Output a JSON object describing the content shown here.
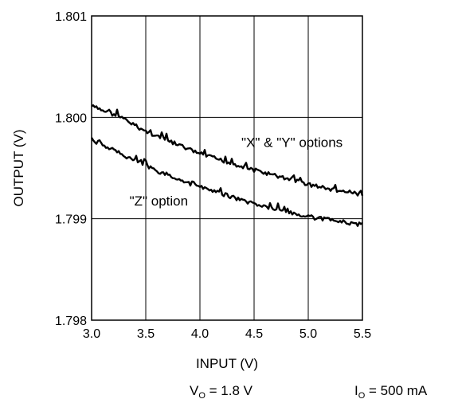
{
  "chart_data": {
    "type": "line",
    "title": "",
    "xlabel": "INPUT (V)",
    "ylabel": "OUTPUT (V)",
    "xlim": [
      3.0,
      5.5
    ],
    "ylim": [
      1.798,
      1.801
    ],
    "x_ticks": [
      "3.0",
      "3.5",
      "4.0",
      "4.5",
      "5.0",
      "5.5"
    ],
    "y_ticks": [
      "1.798",
      "1.799",
      "1.800",
      "1.801"
    ],
    "grid": true,
    "legend": "none",
    "series": [
      {
        "name": "\"X\" & \"Y\" options",
        "x": [
          3.0,
          3.25,
          3.5,
          3.75,
          4.0,
          4.25,
          4.5,
          4.75,
          5.0,
          5.25,
          5.5
        ],
        "y": [
          1.80011,
          1.80001,
          1.79986,
          1.79975,
          1.79964,
          1.79956,
          1.79948,
          1.79941,
          1.79934,
          1.79928,
          1.79924
        ]
      },
      {
        "name": "\"Z\" option",
        "x": [
          3.0,
          3.25,
          3.5,
          3.75,
          4.0,
          4.25,
          4.5,
          4.75,
          5.0,
          5.25,
          5.5
        ],
        "y": [
          1.79978,
          1.79965,
          1.79952,
          1.79941,
          1.79931,
          1.79923,
          1.79915,
          1.79908,
          1.79902,
          1.79898,
          1.79894
        ]
      }
    ],
    "annotations": [
      {
        "text": "\"X\" & \"Y\" options",
        "x": 4.85,
        "y": 1.79971
      },
      {
        "text": "\"Z\" option",
        "x": 3.62,
        "y": 1.79913
      }
    ],
    "conditions": {
      "vo_symbol": "V",
      "vo_sub": "O",
      "vo_value": " = 1.8 V",
      "io_symbol": "I",
      "io_sub": "O",
      "io_value": " = 500 mA"
    }
  }
}
